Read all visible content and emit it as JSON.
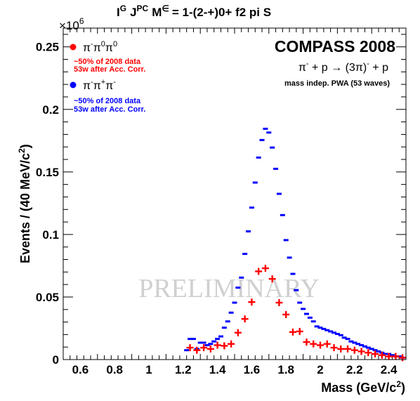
{
  "chart_data": {
    "type": "scatter",
    "title": "I^G J^PC M^ε = 1-(2-+)0+ f2 pi S",
    "title_parts": {
      "i": "I",
      "g": "G",
      "j": "J",
      "pc": "PC",
      "m": "M",
      "eps": "∈",
      "rest": "= 1-(2-+)0+ f2 pi S"
    },
    "xlabel": "Mass (GeV/c²)",
    "xlabel_parts": {
      "main": "Mass (GeV/c",
      "sup": "2",
      "close": ")"
    },
    "ylabel": "Events / (40 MeV/c²)",
    "ylabel_parts": {
      "main": "Events / (40 MeV/c",
      "sup": "2",
      "close": ")"
    },
    "y_exponent_label": "×10",
    "y_exponent": "6",
    "xlim": [
      0.5,
      2.5
    ],
    "ylim": [
      0,
      0.265
    ],
    "x_ticks": [
      "0.6",
      "0.8",
      "1",
      "1.2",
      "1.4",
      "1.6",
      "1.8",
      "2",
      "2.2",
      "2.4"
    ],
    "x_tick_values": [
      0.6,
      0.8,
      1.0,
      1.2,
      1.4,
      1.6,
      1.8,
      2.0,
      2.2,
      2.4
    ],
    "y_ticks": [
      "0",
      "0.05",
      "0.1",
      "0.15",
      "0.2",
      "0.25"
    ],
    "y_tick_values": [
      0,
      0.05,
      0.1,
      0.15,
      0.2,
      0.25
    ],
    "experiment": "COMPASS 2008",
    "reaction": "π⁻ + p → (3π)⁻ + p",
    "reaction_parts": {
      "a": "π",
      "a_sup": "-",
      "b": " + p  →  (3π)",
      "b_sup": "-",
      "c": " + p"
    },
    "note": "mass indep. PWA (53 waves)",
    "watermark": "PRELIMINARY",
    "legend_position": "top-left",
    "series": [
      {
        "name": "π⁻π⁰π⁰",
        "label_parts": {
          "a": "π",
          "a_sup": "-",
          "b": "π",
          "b_sup": "0",
          "c": "π",
          "c_sup": "0"
        },
        "sub1": "~50% of 2008 data",
        "sub2": "53w after Acc. Corr.",
        "color": "#ff0000",
        "marker": "cross",
        "x": [
          1.24,
          1.28,
          1.32,
          1.36,
          1.4,
          1.44,
          1.48,
          1.52,
          1.56,
          1.6,
          1.64,
          1.68,
          1.72,
          1.76,
          1.8,
          1.84,
          1.88,
          1.92,
          1.96,
          2.0,
          2.04,
          2.08,
          2.12,
          2.16,
          2.2,
          2.24,
          2.28,
          2.32,
          2.36,
          2.4,
          2.44,
          2.48
        ],
        "y": [
          0.0095,
          0.0075,
          0.0095,
          0.0085,
          0.0115,
          0.011,
          0.0125,
          0.0215,
          0.0325,
          0.046,
          0.0705,
          0.073,
          0.0645,
          0.0455,
          0.036,
          0.022,
          0.0225,
          0.014,
          0.0125,
          0.0115,
          0.0125,
          0.0095,
          0.0085,
          0.0085,
          0.0075,
          0.0065,
          0.0055,
          0.0045,
          0.0035,
          0.0025,
          0.0025,
          0.0015
        ]
      },
      {
        "name": "π⁻π⁺π⁻",
        "label_parts": {
          "a": "π",
          "a_sup": "-",
          "b": "π",
          "b_sup": "+",
          "c": "π",
          "c_sup": "-"
        },
        "sub1": "~50% of 2008 data",
        "sub2": "53w after Acc. Corr.",
        "color": "#0000ff",
        "marker": "dash",
        "x": [
          1.22,
          1.24,
          1.26,
          1.28,
          1.3,
          1.32,
          1.34,
          1.36,
          1.38,
          1.4,
          1.42,
          1.44,
          1.46,
          1.48,
          1.5,
          1.52,
          1.54,
          1.56,
          1.58,
          1.6,
          1.62,
          1.64,
          1.66,
          1.68,
          1.7,
          1.72,
          1.74,
          1.76,
          1.78,
          1.8,
          1.82,
          1.84,
          1.86,
          1.88,
          1.9,
          1.92,
          1.94,
          1.96,
          1.98,
          2.0,
          2.02,
          2.04,
          2.06,
          2.08,
          2.1,
          2.12,
          2.14,
          2.16,
          2.18,
          2.2,
          2.22,
          2.24,
          2.26,
          2.28,
          2.3,
          2.32,
          2.34,
          2.36,
          2.38,
          2.4,
          2.42,
          2.44,
          2.46,
          2.48
        ],
        "y": [
          0.0075,
          0.0165,
          0.0165,
          0.0085,
          0.0135,
          0.0135,
          0.0115,
          0.0125,
          0.0145,
          0.0165,
          0.0185,
          0.0255,
          0.0305,
          0.0375,
          0.0455,
          0.0575,
          0.0655,
          0.0845,
          0.1025,
          0.1215,
          0.1415,
          0.1615,
          0.1755,
          0.1845,
          0.1815,
          0.1695,
          0.1525,
          0.1325,
          0.1155,
          0.0955,
          0.0815,
          0.0685,
          0.0555,
          0.0455,
          0.0405,
          0.0365,
          0.0335,
          0.0305,
          0.0265,
          0.0255,
          0.0245,
          0.0235,
          0.0225,
          0.0215,
          0.0205,
          0.0195,
          0.0175,
          0.0165,
          0.0145,
          0.0135,
          0.0125,
          0.0115,
          0.0105,
          0.0095,
          0.0085,
          0.0075,
          0.0065,
          0.0055,
          0.0045,
          0.0045,
          0.0035,
          0.0025,
          0.0025,
          0.0015
        ]
      }
    ]
  }
}
